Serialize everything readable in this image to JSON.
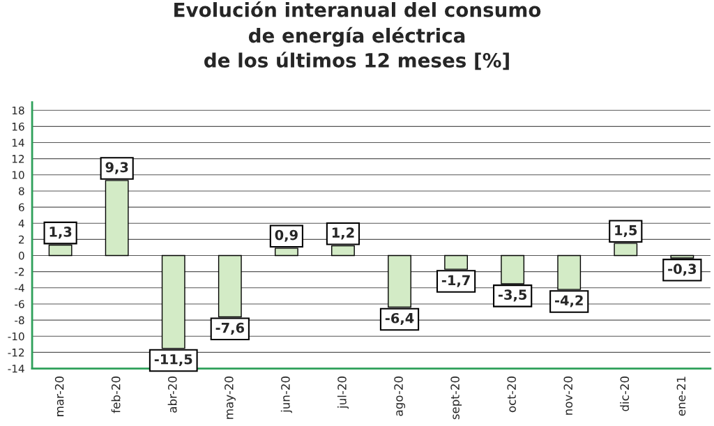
{
  "chart_data": {
    "type": "bar",
    "title": "Evolución interanual del consumo\nde energía eléctrica\nde los últimos 12 meses [%]",
    "categories": [
      "mar-20",
      "feb-20",
      "abr-20",
      "may-20",
      "jun-20",
      "jul-20",
      "ago-20",
      "sept-20",
      "oct-20",
      "nov-20",
      "dic-20",
      "ene-21"
    ],
    "values": [
      1.3,
      9.3,
      -11.5,
      -7.6,
      0.9,
      1.2,
      -6.4,
      -1.7,
      -3.5,
      -4.2,
      1.5,
      -0.3
    ],
    "value_labels": [
      "1,3",
      "9,3",
      "-11,5",
      "-7,6",
      "0,9",
      "1,2",
      "-6,4",
      "-1,7",
      "-3,5",
      "-4,2",
      "1,5",
      "-0,3"
    ],
    "color": "#d3ebc6",
    "ylim": [
      -14,
      19
    ],
    "yticks": [
      -14,
      -12,
      -10,
      -8,
      -6,
      -4,
      -2,
      0,
      2,
      4,
      6,
      8,
      10,
      12,
      14,
      16,
      18
    ],
    "grid": "y",
    "legend": false
  }
}
